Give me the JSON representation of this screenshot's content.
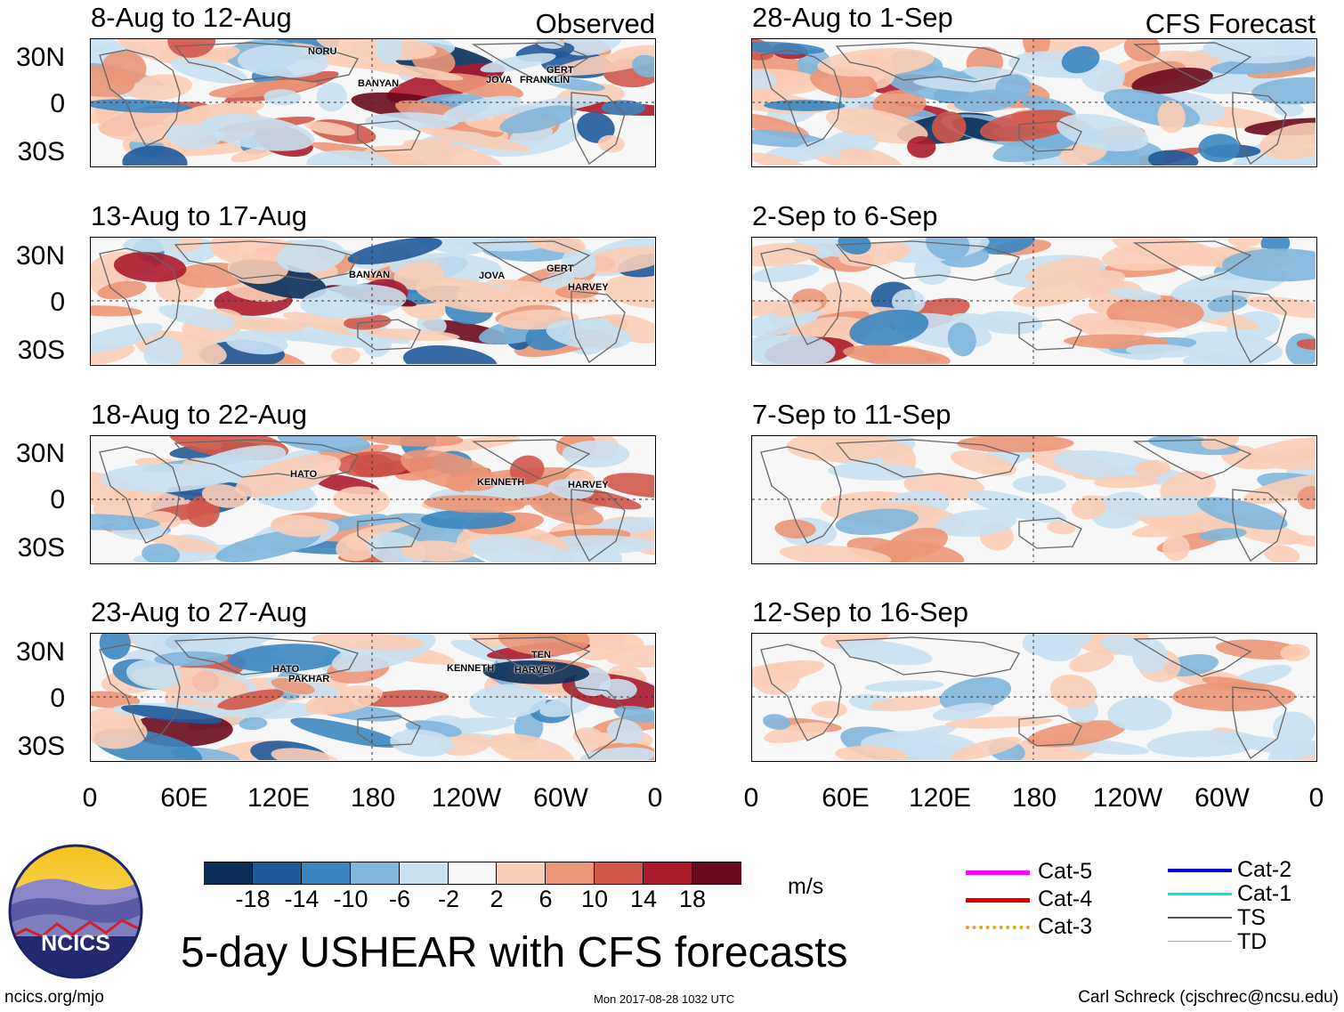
{
  "observed_label": "Observed",
  "forecast_label": "CFS Forecast",
  "observed_panels": [
    {
      "title": "8-Aug to 12-Aug",
      "storms": [
        "NORU",
        "BANYAN",
        "JOVA",
        "FRANKLIN",
        "GERT"
      ]
    },
    {
      "title": "13-Aug to 17-Aug",
      "storms": [
        "BANYAN",
        "JOVA",
        "GERT",
        "HARVEY"
      ]
    },
    {
      "title": "18-Aug to 22-Aug",
      "storms": [
        "HATO",
        "KENNETH",
        "HARVEY"
      ]
    },
    {
      "title": "23-Aug to 27-Aug",
      "storms": [
        "HATO",
        "PAKHAR",
        "KENNETH",
        "TEN",
        "HARVEY"
      ]
    }
  ],
  "forecast_panels": [
    {
      "title": "28-Aug to 1-Sep"
    },
    {
      "title": "2-Sep to 6-Sep"
    },
    {
      "title": "7-Sep to 11-Sep"
    },
    {
      "title": "12-Sep to 16-Sep"
    }
  ],
  "lat_labels": [
    "30N",
    "0",
    "30S"
  ],
  "lon_labels": [
    "0",
    "60E",
    "120E",
    "180",
    "120W",
    "60W",
    "0"
  ],
  "colorbar": {
    "units": "m/s",
    "tick_labels": [
      "-18",
      "-14",
      "-10",
      "-6",
      "-2",
      "2",
      "6",
      "10",
      "14",
      "18"
    ],
    "colors": [
      "#0a2f59",
      "#1f5a9a",
      "#3b86c0",
      "#80b6da",
      "#c9e0ef",
      "#f7f7f7",
      "#f9cdb6",
      "#eb9677",
      "#d0584a",
      "#ac1b2c",
      "#6a0a1d"
    ]
  },
  "track_legend": [
    {
      "label": "Cat-5",
      "color": "#ff00ff"
    },
    {
      "label": "Cat-4",
      "color": "#e60000"
    },
    {
      "label": "Cat-3",
      "color": "#e8a317"
    },
    {
      "label": "Cat-2",
      "color": "#0000d0"
    },
    {
      "label": "Cat-1",
      "color": "#00e5ee"
    },
    {
      "label": "TS",
      "color": "#555555"
    },
    {
      "label": "TD",
      "color": "#aaaaaa"
    }
  ],
  "logo_text": "NCICS",
  "main_title": "5-day USHEAR with CFS forecasts",
  "footer": {
    "left": "ncics.org/mjo",
    "center": "Mon 2017-08-28 1032 UTC",
    "right": "Carl Schreck (cjschrec@ncsu.edu)"
  }
}
